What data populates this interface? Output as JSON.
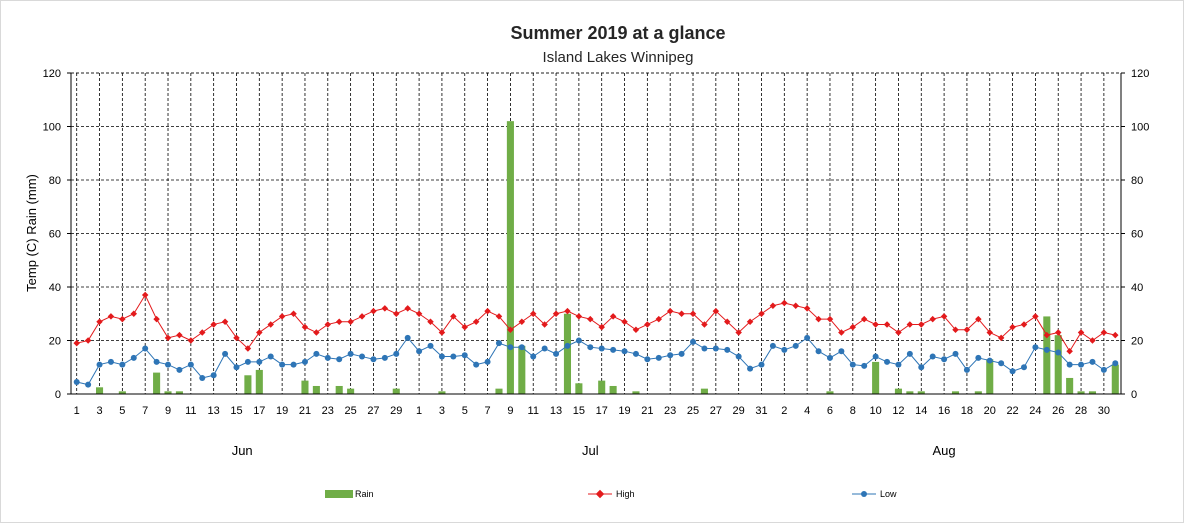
{
  "chart_data": {
    "type": "bar",
    "title": "Summer 2019 at a glance",
    "subtitle": "Island Lakes Winnipeg",
    "ylabel": "Temp (C) Rain (mm)",
    "ylim": [
      0,
      120
    ],
    "y_ticks": [
      "0",
      "20",
      "40",
      "60",
      "80",
      "100",
      "120"
    ],
    "y2_ticks": [
      "0",
      "20",
      "40",
      "60",
      "80",
      "100",
      "120"
    ],
    "grid": true,
    "legend_position": "bottom",
    "months": [
      "Jun",
      "Jul",
      "Aug"
    ],
    "x_tick_labels": [
      "1",
      "3",
      "5",
      "7",
      "9",
      "11",
      "13",
      "15",
      "17",
      "19",
      "21",
      "23",
      "25",
      "27",
      "29",
      "1",
      "3",
      "5",
      "7",
      "9",
      "11",
      "13",
      "15",
      "17",
      "19",
      "21",
      "23",
      "25",
      "27",
      "29",
      "31",
      "2",
      "4",
      "6",
      "8",
      "10",
      "12",
      "14",
      "16",
      "18",
      "20",
      "22",
      "24",
      "26",
      "28",
      "30"
    ],
    "x": [
      "Jun 1",
      "Jun 2",
      "Jun 3",
      "Jun 4",
      "Jun 5",
      "Jun 6",
      "Jun 7",
      "Jun 8",
      "Jun 9",
      "Jun 10",
      "Jun 11",
      "Jun 12",
      "Jun 13",
      "Jun 14",
      "Jun 15",
      "Jun 16",
      "Jun 17",
      "Jun 18",
      "Jun 19",
      "Jun 20",
      "Jun 21",
      "Jun 22",
      "Jun 23",
      "Jun 24",
      "Jun 25",
      "Jun 26",
      "Jun 27",
      "Jun 28",
      "Jun 29",
      "Jun 30",
      "Jul 1",
      "Jul 2",
      "Jul 3",
      "Jul 4",
      "Jul 5",
      "Jul 6",
      "Jul 7",
      "Jul 8",
      "Jul 9",
      "Jul 10",
      "Jul 11",
      "Jul 12",
      "Jul 13",
      "Jul 14",
      "Jul 15",
      "Jul 16",
      "Jul 17",
      "Jul 18",
      "Jul 19",
      "Jul 20",
      "Jul 21",
      "Jul 22",
      "Jul 23",
      "Jul 24",
      "Jul 25",
      "Jul 26",
      "Jul 27",
      "Jul 28",
      "Jul 29",
      "Jul 30",
      "Jul 31",
      "Aug 1",
      "Aug 2",
      "Aug 3",
      "Aug 4",
      "Aug 5",
      "Aug 6",
      "Aug 7",
      "Aug 8",
      "Aug 9",
      "Aug 10",
      "Aug 11",
      "Aug 12",
      "Aug 13",
      "Aug 14",
      "Aug 15",
      "Aug 16",
      "Aug 17",
      "Aug 18",
      "Aug 19",
      "Aug 20",
      "Aug 21",
      "Aug 22",
      "Aug 23",
      "Aug 24",
      "Aug 25",
      "Aug 26",
      "Aug 27",
      "Aug 28",
      "Aug 29",
      "Aug 30",
      "Aug 31"
    ],
    "series": [
      {
        "name": "Rain",
        "type": "bar",
        "color": "#70ad47",
        "values": [
          0,
          0,
          2.5,
          0,
          1,
          0,
          0,
          8,
          1,
          1,
          0,
          0,
          0,
          0,
          0,
          7,
          9,
          0,
          0,
          0,
          5,
          3,
          0,
          3,
          2,
          0,
          0,
          0,
          2,
          0,
          0,
          0,
          1,
          0,
          0,
          0,
          0,
          2,
          102,
          18,
          0,
          0,
          0,
          30,
          4,
          0,
          5,
          3,
          0,
          1,
          0,
          0,
          0,
          0,
          0,
          2,
          0,
          0,
          0,
          0,
          0,
          0,
          0,
          0,
          0,
          0,
          1,
          0,
          0,
          0,
          12,
          0,
          2,
          1,
          1,
          0,
          0,
          1,
          0,
          1,
          13,
          0,
          0,
          0,
          0,
          29,
          22,
          6,
          1,
          1,
          0,
          11
        ]
      },
      {
        "name": "High",
        "type": "line",
        "color": "#e31a1c",
        "values": [
          19,
          20,
          27,
          29,
          28,
          30,
          37,
          28,
          21,
          22,
          20,
          23,
          26,
          27,
          21,
          17,
          23,
          26,
          29,
          30,
          25,
          23,
          26,
          27,
          27,
          29,
          31,
          32,
          30,
          32,
          30,
          27,
          23,
          29,
          25,
          27,
          31,
          29,
          24,
          27,
          30,
          26,
          30,
          31,
          29,
          28,
          25,
          29,
          27,
          24,
          26,
          28,
          31,
          30,
          30,
          26,
          31,
          27,
          23,
          27,
          30,
          33,
          34,
          33,
          32,
          28,
          28,
          23,
          25,
          28,
          26,
          26,
          23,
          26,
          26,
          28,
          29,
          24,
          24,
          28,
          23,
          21,
          25,
          26,
          29,
          22,
          23,
          16,
          23,
          20,
          23,
          22
        ]
      },
      {
        "name": "Low",
        "type": "line",
        "color": "#2e75b6",
        "values": [
          4.5,
          3.5,
          11,
          12,
          11,
          13.5,
          17,
          12,
          11,
          9,
          11,
          6,
          7,
          15,
          10,
          12,
          12,
          14,
          11,
          11,
          12,
          15,
          13.5,
          13,
          15,
          14,
          13,
          13.5,
          15,
          21,
          16,
          18,
          14,
          14,
          14.5,
          11,
          12,
          19,
          17.5,
          17.5,
          14,
          17,
          15,
          18,
          20,
          17.5,
          17,
          16.5,
          16,
          15,
          13,
          13.5,
          14.5,
          15,
          19.5,
          17,
          17,
          16.5,
          14,
          9.5,
          11,
          18,
          16.5,
          18,
          21,
          16,
          13.5,
          16,
          11,
          10.5,
          14,
          12,
          11,
          15,
          10,
          14,
          13,
          15,
          9,
          13.5,
          12.5,
          11.5,
          8.5,
          10,
          17.5,
          16.5,
          15.5,
          11,
          11,
          12,
          9,
          11.5
        ]
      }
    ]
  }
}
